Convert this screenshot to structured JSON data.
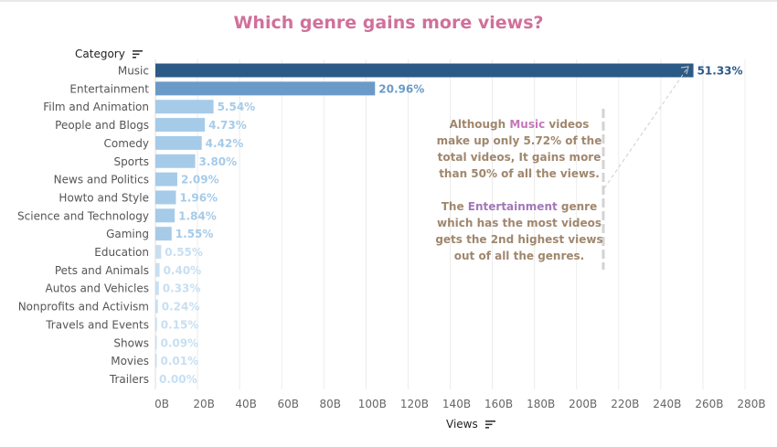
{
  "title": "Which genre gains more views?",
  "category_header": "Category",
  "x_header": "Views",
  "annotation": {
    "p1_a": "Although ",
    "p1_music": "Music",
    "p1_b": " videos make up only 5.72% of the total videos, It gains more than 50% of all the views.",
    "p2_a": "The ",
    "p2_ent": "Entertainment",
    "p2_b": " genre which has the most videos gets the 2nd highest views out of all the genres."
  },
  "chart_data": {
    "type": "bar",
    "orientation": "horizontal",
    "xlim": [
      0,
      280
    ],
    "x_tick_values": [
      0,
      20,
      40,
      60,
      80,
      100,
      120,
      140,
      160,
      180,
      200,
      220,
      240,
      260,
      280
    ],
    "x_tick_labels": [
      "0B",
      "20B",
      "40B",
      "60B",
      "80B",
      "100B",
      "120B",
      "140B",
      "160B",
      "180B",
      "200B",
      "220B",
      "240B",
      "260B",
      "280B"
    ],
    "grid": "vertical",
    "categories": [
      "Music",
      "Entertainment",
      "Film and Animation",
      "People and Blogs",
      "Comedy",
      "Sports",
      "News and Politics",
      "Howto and Style",
      "Science and Technology",
      "Gaming",
      "Education",
      "Pets and Animals",
      "Autos and Vehicles",
      "Nonprofits and Activism",
      "Travels and Events",
      "Shows",
      "Movies",
      "Trailers"
    ],
    "values": [
      255.5,
      104.3,
      27.6,
      23.5,
      22.0,
      18.9,
      10.4,
      9.75,
      9.16,
      7.71,
      2.74,
      1.99,
      1.64,
      1.19,
      0.75,
      0.45,
      0.05,
      0.0
    ],
    "labels": [
      "51.33%",
      "20.96%",
      "5.54%",
      "4.73%",
      "4.42%",
      "3.80%",
      "2.09%",
      "1.96%",
      "1.84%",
      "1.55%",
      "0.55%",
      "0.40%",
      "0.33%",
      "0.24%",
      "0.15%",
      "0.09%",
      "0.01%",
      "0.00%"
    ],
    "colors": [
      "#2c5a87",
      "#6a9bc8",
      "#a6cbe9",
      "#a6cbe9",
      "#a6cbe9",
      "#a6cbe9",
      "#a6cbe9",
      "#a6cbe9",
      "#a6cbe9",
      "#a6cbe9",
      "#c6dff2",
      "#c6dff2",
      "#c6dff2",
      "#c6dff2",
      "#c6dff2",
      "#c6dff2",
      "#c6dff2",
      "#c6dff2"
    ],
    "label_colors": [
      "#2c5a87",
      "#6a9bc8",
      "#a6cbe9",
      "#a6cbe9",
      "#a6cbe9",
      "#a6cbe9",
      "#a6cbe9",
      "#a6cbe9",
      "#a6cbe9",
      "#a6cbe9",
      "#c6dff2",
      "#c6dff2",
      "#c6dff2",
      "#c6dff2",
      "#c6dff2",
      "#c6dff2",
      "#c6dff2",
      "#c6dff2"
    ]
  }
}
